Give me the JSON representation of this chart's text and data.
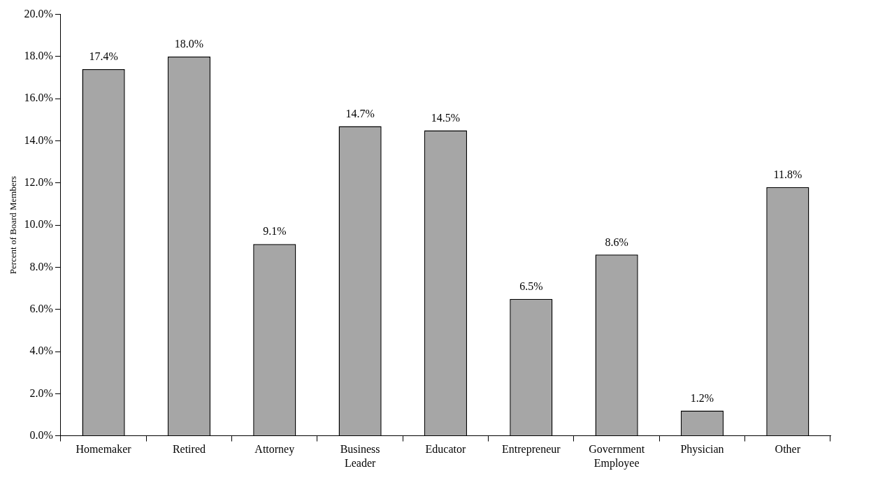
{
  "chart_data": {
    "type": "bar",
    "ylabel": "Percent of Board Members",
    "categories": [
      "Homemaker",
      "Retired",
      "Attorney",
      "Business Leader",
      "Educator",
      "Entrepreneur",
      "Government Employee",
      "Physician",
      "Other"
    ],
    "values": [
      17.4,
      18.0,
      9.1,
      14.7,
      14.5,
      6.5,
      8.6,
      1.2,
      11.8
    ],
    "value_labels": [
      "17.4%",
      "18.0%",
      "9.1%",
      "14.7%",
      "14.5%",
      "6.5%",
      "8.6%",
      "1.2%",
      "11.8%"
    ],
    "color": "#a6a6a6",
    "ylim": [
      0,
      20
    ],
    "yticks": [
      {
        "value": 0,
        "label": "0.0%"
      },
      {
        "value": 2,
        "label": "2.0%"
      },
      {
        "value": 4,
        "label": "4.0%"
      },
      {
        "value": 6,
        "label": "6.0%"
      },
      {
        "value": 8,
        "label": "8.0%"
      },
      {
        "value": 10,
        "label": "10.0%"
      },
      {
        "value": 12,
        "label": "12.0%"
      },
      {
        "value": 14,
        "label": "14.0%"
      },
      {
        "value": 16,
        "label": "16.0%"
      },
      {
        "value": 18,
        "label": "18.0%"
      },
      {
        "value": 20,
        "label": "20.0%"
      }
    ],
    "grid": false,
    "legend": false
  }
}
